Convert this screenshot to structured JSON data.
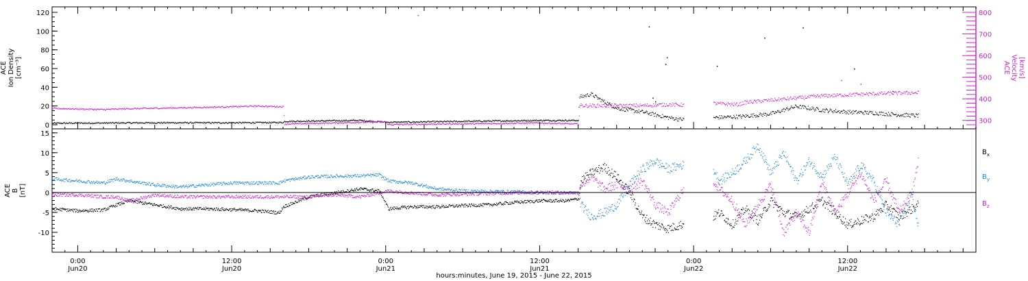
{
  "colors": {
    "black": "#000000",
    "magenta": "#d21ed2",
    "blue": "#1e88d8",
    "frame": "#000000",
    "background": "#ffffff"
  },
  "x_axis": {
    "ticks": [
      {
        "hours": 0,
        "time": "0:00",
        "day": "Jun20"
      },
      {
        "hours": 12,
        "time": "12:00",
        "day": "Jun20"
      },
      {
        "hours": 24,
        "time": "0:00",
        "day": "Jun21"
      },
      {
        "hours": 36,
        "time": "12:00",
        "day": "Jun21"
      },
      {
        "hours": 48,
        "time": "0:00",
        "day": "Jun22"
      },
      {
        "hours": 60,
        "time": "12:00",
        "day": "Jun22"
      }
    ],
    "range_hours": [
      -2,
      70
    ],
    "title": "hours:minutes, June 19, 2015 - June 22, 2015"
  },
  "chart_data": [
    {
      "type": "scatter",
      "panel": "top",
      "left_axis": {
        "label_lines": [
          "ACE",
          "Ion Density",
          "[cm⁻³]"
        ],
        "ylim": [
          0,
          120
        ],
        "ticks": [
          0,
          20,
          40,
          60,
          80,
          100,
          120
        ]
      },
      "right_axis": {
        "label_lines": [
          "ACE",
          "Velocity",
          "[km/s]"
        ],
        "ylim": [
          250,
          800
        ],
        "ticks": [
          300,
          400,
          500,
          600,
          700,
          800
        ],
        "color": "#d21ed2"
      },
      "series": [
        {
          "color": "#000000",
          "axis": "left",
          "x": [
            -2,
            6,
            12,
            16,
            16.1,
            22,
            24.2,
            30,
            36,
            39,
            39.1,
            40,
            41,
            42,
            44,
            46,
            47,
            49.5,
            51.5,
            54,
            56,
            58,
            60,
            62,
            64,
            65.5
          ],
          "y": [
            2,
            2.5,
            2.5,
            2.8,
            4,
            5,
            3,
            4,
            5,
            5,
            30,
            33,
            25,
            18,
            14,
            8,
            6,
            8,
            9,
            12,
            20,
            16,
            14,
            13,
            11,
            10
          ],
          "outliers": [
            [
              44.5,
              105
            ],
            [
              45.8,
              65
            ],
            [
              45.9,
              72
            ],
            [
              49.8,
              63
            ],
            [
              53.5,
              93
            ],
            [
              56.5,
              104
            ],
            [
              60.5,
              60
            ],
            [
              63.5,
              36
            ],
            [
              45,
              25
            ],
            [
              44.8,
              29
            ]
          ]
        },
        {
          "color": "#d21ed2",
          "axis": "right",
          "x": [
            -2,
            2,
            4,
            6,
            8,
            12,
            14,
            16,
            16.1,
            20,
            24,
            24.2,
            28,
            32,
            36,
            39,
            39.1,
            44,
            46,
            47,
            49.5,
            51.5,
            52,
            54,
            58,
            60,
            62,
            65.5
          ],
          "y": [
            357,
            352,
            356,
            358,
            360,
            365,
            368,
            365,
            285,
            290,
            295,
            282,
            285,
            287,
            290,
            285,
            370,
            370,
            375,
            373,
            380,
            375,
            385,
            395,
            415,
            420,
            425,
            430
          ],
          "outliers": [
            [
              26.5,
              788
            ],
            [
              59.5,
              487
            ],
            [
              61,
              470
            ]
          ]
        }
      ]
    },
    {
      "type": "scatter",
      "panel": "bottom",
      "left_axis": {
        "label_lines": [
          "ACE",
          "B",
          "[nT]"
        ],
        "ylim": [
          -15,
          16
        ],
        "ticks": [
          -10,
          -5,
          0,
          5,
          10,
          15
        ]
      },
      "zero_line": true,
      "legend": [
        "Bx",
        "By",
        "Bz"
      ],
      "series": [
        {
          "name": "Bx",
          "color": "#000000",
          "x": [
            -2,
            0,
            2,
            3,
            4,
            6,
            8,
            10,
            12,
            14,
            15.7,
            16,
            18,
            20,
            22,
            23.5,
            24.2,
            26,
            28,
            30,
            32,
            34,
            36,
            38,
            39,
            39.2,
            40,
            41,
            42,
            43,
            44,
            45,
            46,
            47,
            49.5,
            50,
            51,
            52,
            53,
            54,
            55,
            56,
            57,
            58,
            59,
            60,
            61,
            62,
            63,
            64,
            65,
            65.5
          ],
          "y": [
            -4,
            -4.5,
            -4.3,
            -3,
            -2,
            -3,
            -4,
            -4,
            -4.2,
            -4.5,
            -5,
            -3.5,
            -1,
            0,
            1,
            0.5,
            -4,
            -3.5,
            -3.5,
            -3.2,
            -3,
            -2.4,
            -2,
            -2,
            -1.5,
            3,
            5,
            6.5,
            4,
            0,
            -6,
            -8,
            -9,
            -8,
            -6,
            -5,
            -8,
            -4,
            -7,
            -2,
            -5,
            -6,
            -4,
            -2,
            -5,
            -8,
            -7,
            -6,
            -3,
            -6,
            -4,
            -3
          ]
        },
        {
          "name": "By",
          "color": "#1e88d8",
          "x": [
            -2,
            0,
            2,
            3,
            4,
            6,
            8,
            12,
            15.7,
            16,
            18,
            20,
            22,
            23.5,
            24.2,
            26,
            28,
            30,
            34,
            36,
            39,
            39.2,
            40,
            41,
            42,
            43,
            44,
            45,
            46,
            47,
            49.5,
            50,
            51,
            52,
            53,
            54,
            55,
            56,
            57,
            58,
            59,
            60,
            61,
            62,
            63,
            64,
            65,
            65.5
          ],
          "y": [
            3.5,
            3,
            2.5,
            3.5,
            3,
            2,
            1.5,
            2.5,
            2.5,
            3,
            4,
            4.2,
            4.3,
            4.5,
            3,
            2.5,
            1,
            0.5,
            0.3,
            0,
            0,
            -3,
            -6,
            -5,
            -3,
            2,
            6,
            8,
            6,
            7,
            6,
            3,
            5,
            8,
            12,
            5,
            10,
            3,
            8,
            4,
            9,
            2,
            7,
            3,
            -5,
            -8,
            0,
            -9
          ]
        },
        {
          "name": "Bz",
          "color": "#d21ed2",
          "x": [
            -2,
            0,
            2,
            3,
            4,
            6,
            8,
            12,
            15.7,
            16,
            18,
            20,
            22,
            23.5,
            24.2,
            26,
            28,
            30,
            34,
            36,
            39,
            39.2,
            40,
            41,
            42,
            43,
            44,
            45,
            46,
            47,
            49.5,
            50,
            51,
            52,
            53,
            54,
            55,
            56,
            57,
            58,
            59,
            60,
            61,
            62,
            63,
            64,
            65,
            65.5
          ],
          "y": [
            -0.5,
            -0.5,
            -1,
            -1,
            -2,
            -0.5,
            -1,
            -1,
            -1,
            -1,
            -1,
            -0.5,
            -1,
            0,
            0.5,
            0,
            -0.5,
            -0.3,
            0,
            0.2,
            0,
            2,
            4,
            1,
            2,
            1,
            3,
            -3,
            -5,
            0,
            3,
            1,
            -2,
            -8,
            -3,
            2,
            -10,
            -5,
            -10,
            3,
            -5,
            0,
            5,
            -2,
            3,
            -5,
            0,
            8
          ]
        }
      ]
    }
  ]
}
